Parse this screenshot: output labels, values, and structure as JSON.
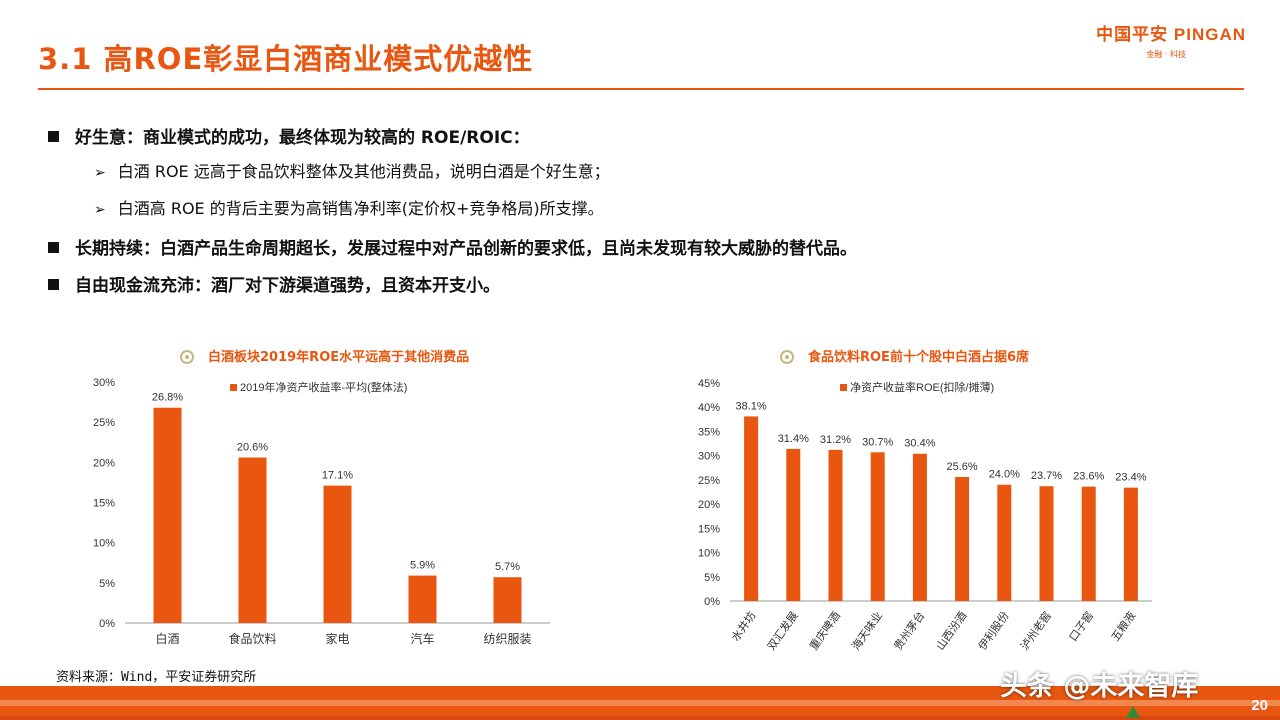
{
  "header": {
    "title": "3.1 高ROE彰显白酒商业模式优越性",
    "logo": "中国平安 PINGAN",
    "logo_sub": "金融 · 科技"
  },
  "bullets": [
    {
      "text": "好生意：商业模式的成功，最终体现为较高的 ROE/ROIC：",
      "subs": [
        "白酒 ROE 远高于食品饮料整体及其他消费品，说明白酒是个好生意；",
        "白酒高 ROE 的背后主要为高销售净利率(定价权+竞争格局)所支撑。"
      ]
    },
    {
      "text": "长期持续：白酒产品生命周期超长，发展过程中对产品创新的要求低，且尚未发现有较大威胁的替代品。",
      "subs": []
    },
    {
      "text": "自由现金流充沛：酒厂对下游渠道强势，且资本开支小。",
      "subs": []
    }
  ],
  "chart_data": [
    {
      "type": "bar",
      "title": "白酒板块2019年ROE水平远高于其他消费品",
      "categories": [
        "白酒",
        "食品饮料",
        "家电",
        "汽车",
        "纺织服装"
      ],
      "series": [
        {
          "name": "2019年净资产收益率-平均(整体法)",
          "values": [
            26.8,
            20.6,
            17.1,
            5.9,
            5.7
          ]
        }
      ],
      "value_labels": [
        "26.8%",
        "20.6%",
        "17.1%",
        "5.9%",
        "5.7%"
      ],
      "ylim": [
        0,
        30
      ],
      "yticks": [
        "0%",
        "5%",
        "10%",
        "15%",
        "20%",
        "25%",
        "30%"
      ],
      "legend_position": "top-left",
      "color": "#e8560f"
    },
    {
      "type": "bar",
      "title": "食品饮料ROE前十个股中白酒占据6席",
      "categories": [
        "水井坊",
        "双汇发展",
        "重庆啤酒",
        "海天味业",
        "贵州茅台",
        "山西汾酒",
        "伊利股份",
        "泸州老窖",
        "口子窖",
        "五粮液"
      ],
      "series": [
        {
          "name": "净资产收益率ROE(扣除/摊薄)",
          "values": [
            38.1,
            31.4,
            31.2,
            30.7,
            30.4,
            25.6,
            24.0,
            23.7,
            23.6,
            23.4
          ]
        }
      ],
      "value_labels": [
        "38.1%",
        "31.4%",
        "31.2%",
        "30.7%",
        "30.4%",
        "25.6%",
        "24.0%",
        "23.7%",
        "23.6%",
        "23.4%"
      ],
      "ylim": [
        0,
        45
      ],
      "yticks": [
        "0%",
        "5%",
        "10%",
        "15%",
        "20%",
        "25%",
        "30%",
        "35%",
        "40%",
        "45%"
      ],
      "legend_position": "top-left",
      "color": "#e8560f"
    }
  ],
  "footer": {
    "source": "资料来源：Wind，平安证券研究所",
    "watermark": "头条 @未来智库",
    "page": "20"
  }
}
